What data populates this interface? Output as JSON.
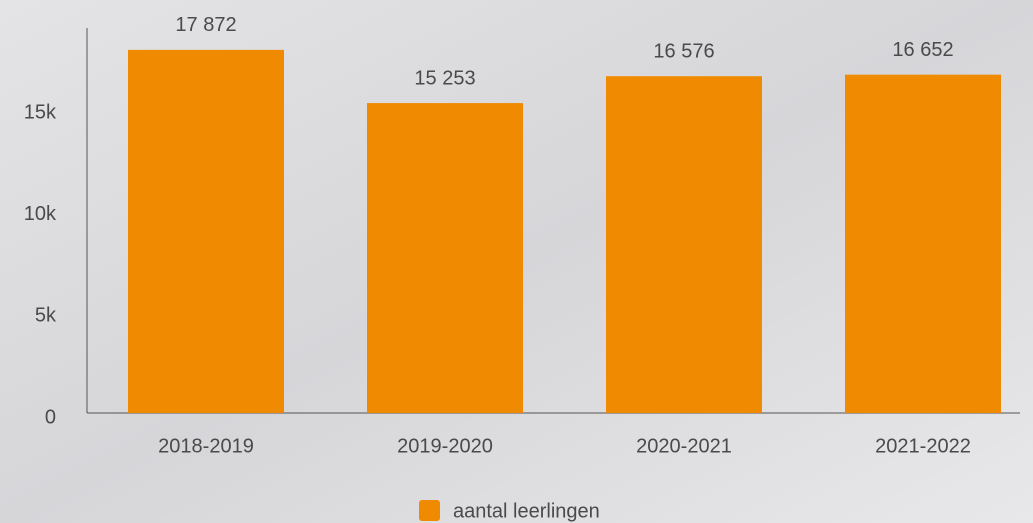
{
  "chart_data": {
    "type": "bar",
    "categories": [
      "2018-2019",
      "2019-2020",
      "2020-2021",
      "2021-2022"
    ],
    "series": [
      {
        "name": "aantal leerlingen",
        "color": "#f08a00",
        "values": [
          17872,
          15253,
          16576,
          16652
        ],
        "value_labels": [
          "17 872",
          "15 253",
          "16 576",
          "16 652"
        ]
      }
    ],
    "ylim": [
      0,
      18850
    ],
    "yticks": [
      0,
      {
        "value": 5000,
        "label": "5k"
      },
      {
        "value": 10000,
        "label": "10k"
      },
      {
        "value": 15000,
        "label": "15k"
      }
    ],
    "grid": false,
    "legend": "bottom"
  }
}
